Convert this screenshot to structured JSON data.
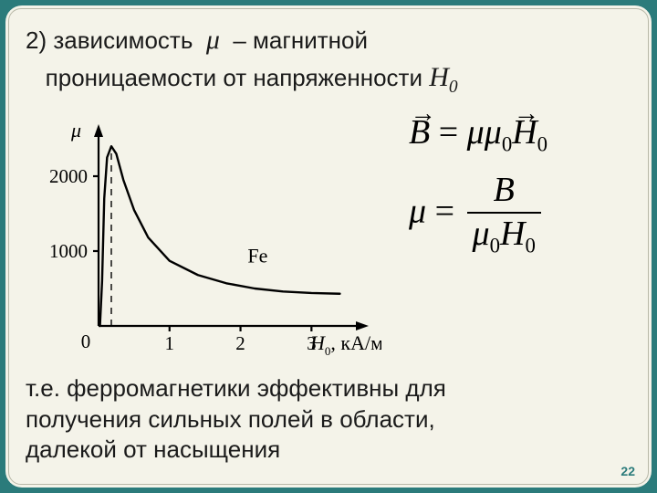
{
  "heading": {
    "item_num": "2)",
    "before_mu": "зависимость",
    "mu": "μ",
    "after_mu": "–  магнитной",
    "line2_before": "проницаемости от напряженности",
    "H0_sym": "Н",
    "H0_sub": "0"
  },
  "chart": {
    "type": "line",
    "xlabel": "H₀, кА/м",
    "xlabel_plain": "кА/м",
    "ylabel": "μ",
    "material": "Fe",
    "xlim": [
      0,
      3.6
    ],
    "ylim": [
      0,
      2500
    ],
    "xticks": [
      0,
      1,
      2,
      3
    ],
    "yticks": [
      1000,
      2000
    ],
    "origin_label": "0",
    "peak_x": 0.18,
    "curve_points": [
      [
        0.02,
        0
      ],
      [
        0.05,
        600
      ],
      [
        0.08,
        1700
      ],
      [
        0.12,
        2250
      ],
      [
        0.18,
        2400
      ],
      [
        0.25,
        2300
      ],
      [
        0.35,
        1950
      ],
      [
        0.5,
        1550
      ],
      [
        0.7,
        1180
      ],
      [
        1.0,
        870
      ],
      [
        1.4,
        680
      ],
      [
        1.8,
        570
      ],
      [
        2.2,
        500
      ],
      [
        2.6,
        460
      ],
      [
        3.0,
        440
      ],
      [
        3.4,
        430
      ]
    ],
    "colors": {
      "bg": "#f4f3e9",
      "axis": "#000000",
      "curve": "#000000",
      "dash": "#000000",
      "text": "#000000"
    },
    "stroke_width": {
      "axis": 2.2,
      "curve": 2.4,
      "dash": 1.4
    },
    "font_size": {
      "axis_label": 22,
      "tick": 21,
      "material": 22
    }
  },
  "formulas": {
    "B": "B",
    "eq": "=",
    "mu": "μ",
    "mu0": "μ",
    "zero": "0",
    "H": "H"
  },
  "bottom": {
    "line1": "т.е. ферромагнетики эффективны для",
    "line2": "получения сильных полей в области,",
    "line3": "далекой от насыщения"
  },
  "page_number": "22"
}
